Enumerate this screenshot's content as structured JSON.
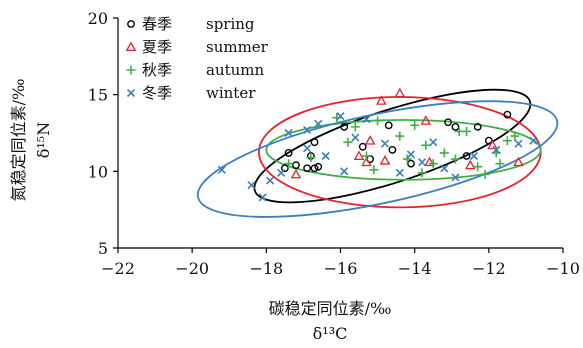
{
  "chart_data": {
    "type": "scatter",
    "xlabel": "碳稳定同位素/‰",
    "xlabel_sub": "δ¹³C",
    "ylabel": "氮稳定同位素/‰",
    "ylabel_sub": "δ¹⁵N",
    "xlim": [
      -22,
      -10
    ],
    "ylim": [
      5,
      20
    ],
    "x_ticks": [
      -22,
      -20,
      -18,
      -16,
      -14,
      -12,
      -10
    ],
    "x_tick_labels": [
      "−22",
      "−20",
      "−18",
      "−16",
      "−14",
      "−12",
      "−10"
    ],
    "y_ticks": [
      5,
      10,
      15,
      20
    ],
    "y_tick_labels": [
      "5",
      "10",
      "15",
      "20"
    ],
    "grid": false,
    "legend_position": "top-left",
    "series": [
      {
        "name": "春季",
        "name_en": "spring",
        "marker": "circle",
        "color": "#000000",
        "points": [
          [
            -17.5,
            10.2
          ],
          [
            -17.4,
            11.2
          ],
          [
            -17.2,
            10.4
          ],
          [
            -16.9,
            10.2
          ],
          [
            -16.7,
            10.2
          ],
          [
            -16.6,
            10.3
          ],
          [
            -16.8,
            11.0
          ],
          [
            -16.7,
            11.9
          ],
          [
            -15.4,
            11.6
          ],
          [
            -15.2,
            10.8
          ],
          [
            -15.9,
            12.9
          ],
          [
            -14.6,
            11.4
          ],
          [
            -14.7,
            13.0
          ],
          [
            -13.1,
            13.2
          ],
          [
            -12.9,
            12.9
          ],
          [
            -12.6,
            11.0
          ],
          [
            -12.3,
            12.9
          ],
          [
            -12.0,
            12.0
          ],
          [
            -11.5,
            13.7
          ],
          [
            -14.1,
            10.5
          ]
        ],
        "ellipse": {
          "cx": -14.6,
          "cy": 11.65,
          "rx": 3.9,
          "ry": 2.35,
          "angle": 18
        }
      },
      {
        "name": "夏季",
        "name_en": "summer",
        "marker": "triangle",
        "color": "#e8202a",
        "points": [
          [
            -17.2,
            9.8
          ],
          [
            -15.5,
            11.0
          ],
          [
            -15.3,
            10.6
          ],
          [
            -15.2,
            12.0
          ],
          [
            -14.9,
            14.6
          ],
          [
            -14.8,
            10.7
          ],
          [
            -14.4,
            15.1
          ],
          [
            -13.7,
            13.3
          ],
          [
            -13.6,
            10.6
          ],
          [
            -12.5,
            10.4
          ],
          [
            -11.9,
            11.7
          ],
          [
            -11.2,
            10.6
          ]
        ],
        "ellipse": {
          "cx": -14.4,
          "cy": 11.25,
          "rx": 3.8,
          "ry": 3.6,
          "angle": 0
        }
      },
      {
        "name": "秋季",
        "name_en": "autumn",
        "marker": "plus",
        "color": "#3cb043",
        "points": [
          [
            -17.4,
            10.5
          ],
          [
            -16.8,
            10.9
          ],
          [
            -16.1,
            13.5
          ],
          [
            -15.8,
            11.9
          ],
          [
            -15.6,
            12.9
          ],
          [
            -15.3,
            11.0
          ],
          [
            -15.0,
            13.3
          ],
          [
            -14.4,
            12.3
          ],
          [
            -14.2,
            10.8
          ],
          [
            -14.0,
            13.0
          ],
          [
            -13.7,
            11.7
          ],
          [
            -13.5,
            10.5
          ],
          [
            -13.2,
            11.2
          ],
          [
            -12.9,
            10.8
          ],
          [
            -12.8,
            12.6
          ],
          [
            -12.6,
            12.6
          ],
          [
            -12.3,
            10.3
          ],
          [
            -12.1,
            9.8
          ],
          [
            -11.8,
            11.2
          ],
          [
            -11.7,
            10.5
          ],
          [
            -11.5,
            12.0
          ],
          [
            -11.3,
            12.3
          ],
          [
            -13.8,
            9.9
          ],
          [
            -15.1,
            10.1
          ]
        ],
        "ellipse": {
          "cx": -14.3,
          "cy": 11.4,
          "rx": 3.7,
          "ry": 1.95,
          "angle": 0
        }
      },
      {
        "name": "冬季",
        "name_en": "winter",
        "marker": "x",
        "color": "#3a7fbf",
        "points": [
          [
            -19.2,
            10.1
          ],
          [
            -18.4,
            9.1
          ],
          [
            -18.1,
            8.3
          ],
          [
            -17.9,
            9.4
          ],
          [
            -17.6,
            9.9
          ],
          [
            -17.4,
            12.5
          ],
          [
            -16.9,
            12.7
          ],
          [
            -16.6,
            13.1
          ],
          [
            -16.4,
            11.0
          ],
          [
            -16.0,
            13.6
          ],
          [
            -15.9,
            10.0
          ],
          [
            -15.6,
            12.2
          ],
          [
            -15.3,
            13.4
          ],
          [
            -14.8,
            11.8
          ],
          [
            -14.4,
            9.9
          ],
          [
            -14.1,
            11.1
          ],
          [
            -13.8,
            10.6
          ],
          [
            -13.5,
            11.9
          ],
          [
            -13.2,
            10.2
          ],
          [
            -12.9,
            9.6
          ],
          [
            -12.4,
            11.0
          ],
          [
            -11.8,
            11.4
          ],
          [
            -11.2,
            11.8
          ],
          [
            -10.8,
            12.0
          ],
          [
            -16.9,
            11.5
          ]
        ],
        "ellipse": {
          "cx": -15.0,
          "cy": 10.8,
          "rx": 4.95,
          "ry": 2.9,
          "angle": 12
        }
      }
    ]
  }
}
